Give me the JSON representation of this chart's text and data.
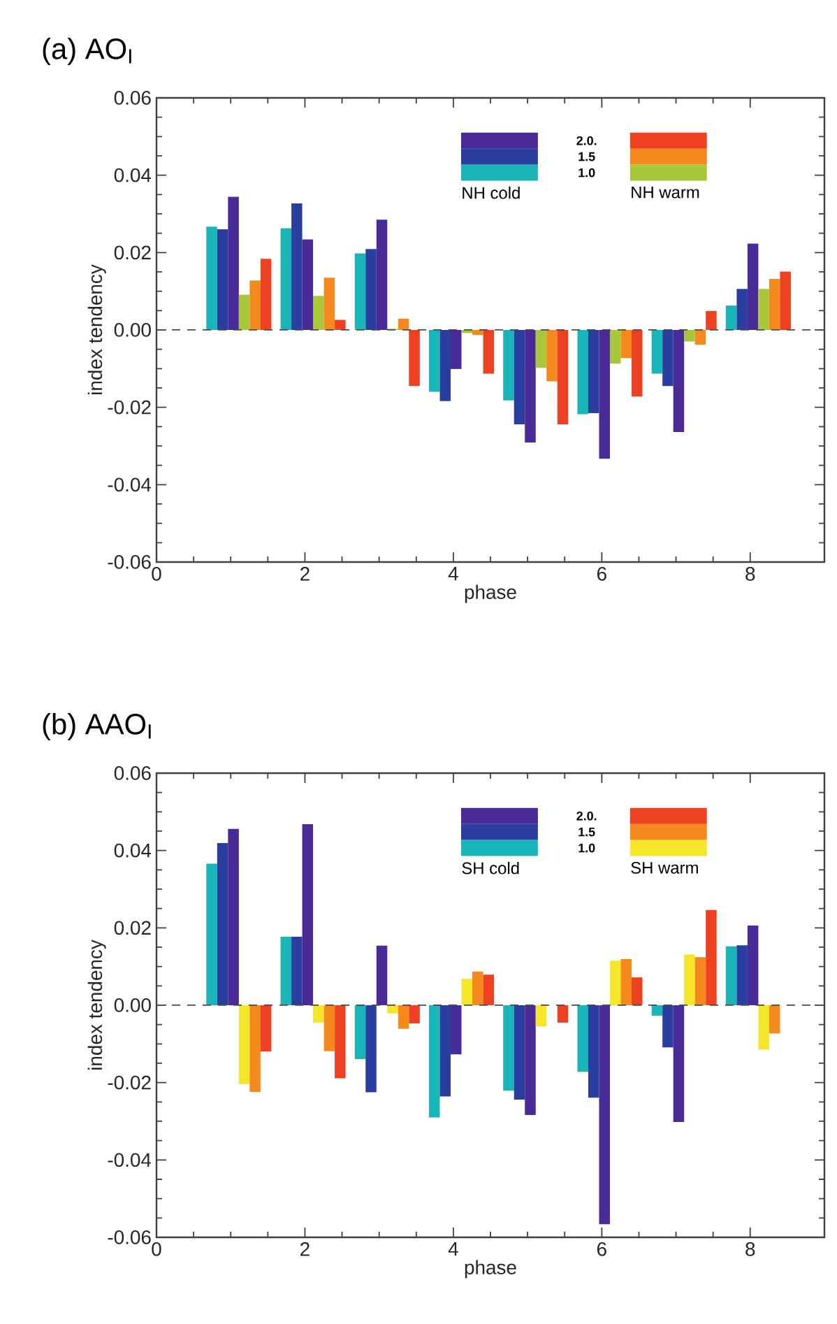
{
  "chart_data": [
    {
      "type": "bar",
      "title": "(a) AO$_{I}$",
      "xlabel": "phase",
      "ylabel": "index tendency",
      "x": [
        1,
        2,
        3,
        4,
        5,
        6,
        7,
        8
      ],
      "series": [
        {
          "color": "#1ab5b8",
          "values": [
            0.0267,
            0.0263,
            0.0198,
            -0.016,
            -0.0182,
            -0.0218,
            -0.0113,
            0.0063
          ]
        },
        {
          "color": "#2a3ea0",
          "values": [
            0.026,
            0.0327,
            0.0209,
            -0.0184,
            -0.0244,
            -0.0215,
            -0.0145,
            0.0106
          ]
        },
        {
          "color": "#4a2a96",
          "values": [
            0.0344,
            0.0234,
            0.0285,
            -0.0101,
            -0.0291,
            -0.0333,
            -0.0264,
            0.0223
          ]
        },
        {
          "color": "#a8c83a",
          "values": [
            0.0091,
            0.0088,
            0.0003,
            -0.0008,
            -0.0098,
            -0.0087,
            -0.003,
            0.0106
          ]
        },
        {
          "color": "#f5891e",
          "values": [
            0.0128,
            0.0135,
            0.0029,
            -0.0013,
            -0.0133,
            -0.0073,
            -0.0038,
            0.0132
          ]
        },
        {
          "color": "#ee4122",
          "values": [
            0.0184,
            0.0026,
            -0.0145,
            -0.0113,
            -0.0244,
            -0.0172,
            0.0049,
            0.0151
          ]
        }
      ],
      "xlim": [
        0,
        9
      ],
      "xticks": [
        0,
        2,
        4,
        6,
        8
      ],
      "ylim": [
        -0.06,
        0.06
      ],
      "yticks": [
        -0.06,
        -0.04,
        -0.02,
        {
          "value": 0,
          "label": "0.00"
        },
        0.02,
        0.04,
        0.06
      ],
      "ref_lines": [
        {
          "axis": "y",
          "value": 0,
          "line_style": "dashed"
        }
      ],
      "annotations": [
        "2.0.",
        "1.5",
        "1.0",
        "NH cold",
        "NH warm"
      ]
    },
    {
      "type": "bar",
      "title": "(b) AAO$_{I}$",
      "xlabel": "phase",
      "ylabel": "index tendency",
      "x": [
        1,
        2,
        3,
        4,
        5,
        6,
        7,
        8
      ],
      "series": [
        {
          "color": "#1ab5b8",
          "values": [
            0.0366,
            0.0177,
            -0.0139,
            -0.029,
            -0.0221,
            -0.0172,
            -0.0027,
            0.0152
          ]
        },
        {
          "color": "#2a3ea0",
          "values": [
            0.0419,
            0.0177,
            -0.0225,
            -0.0236,
            -0.0244,
            -0.0239,
            -0.0109,
            0.0155
          ]
        },
        {
          "color": "#4a2a96",
          "values": [
            0.0456,
            0.0468,
            0.0154,
            -0.0127,
            -0.0284,
            -0.0566,
            -0.0302,
            0.0206
          ]
        },
        {
          "color": "#f5e62a",
          "values": [
            -0.0204,
            -0.0045,
            -0.0021,
            0.0068,
            -0.0055,
            0.0115,
            0.0131,
            -0.0115
          ]
        },
        {
          "color": "#f5891e",
          "values": [
            -0.0224,
            -0.0119,
            -0.0061,
            0.0087,
            null,
            0.0119,
            0.0124,
            -0.0073
          ]
        },
        {
          "color": "#ee4122",
          "values": [
            -0.012,
            -0.0189,
            -0.0047,
            0.0079,
            -0.0045,
            0.0072,
            0.0246,
            null
          ]
        }
      ],
      "xlim": [
        0,
        9
      ],
      "xticks": [
        0,
        2,
        4,
        6,
        8
      ],
      "ylim": [
        -0.06,
        0.06
      ],
      "yticks": [
        -0.06,
        -0.04,
        -0.02,
        {
          "value": 0,
          "label": "0.00"
        },
        0.02,
        0.04,
        0.06
      ],
      "ref_lines": [
        {
          "axis": "y",
          "value": 0,
          "line_style": "dashed"
        }
      ],
      "annotations": [
        "2.0.",
        "1.5",
        "1.0",
        "SH cold",
        "SH warm"
      ]
    }
  ]
}
